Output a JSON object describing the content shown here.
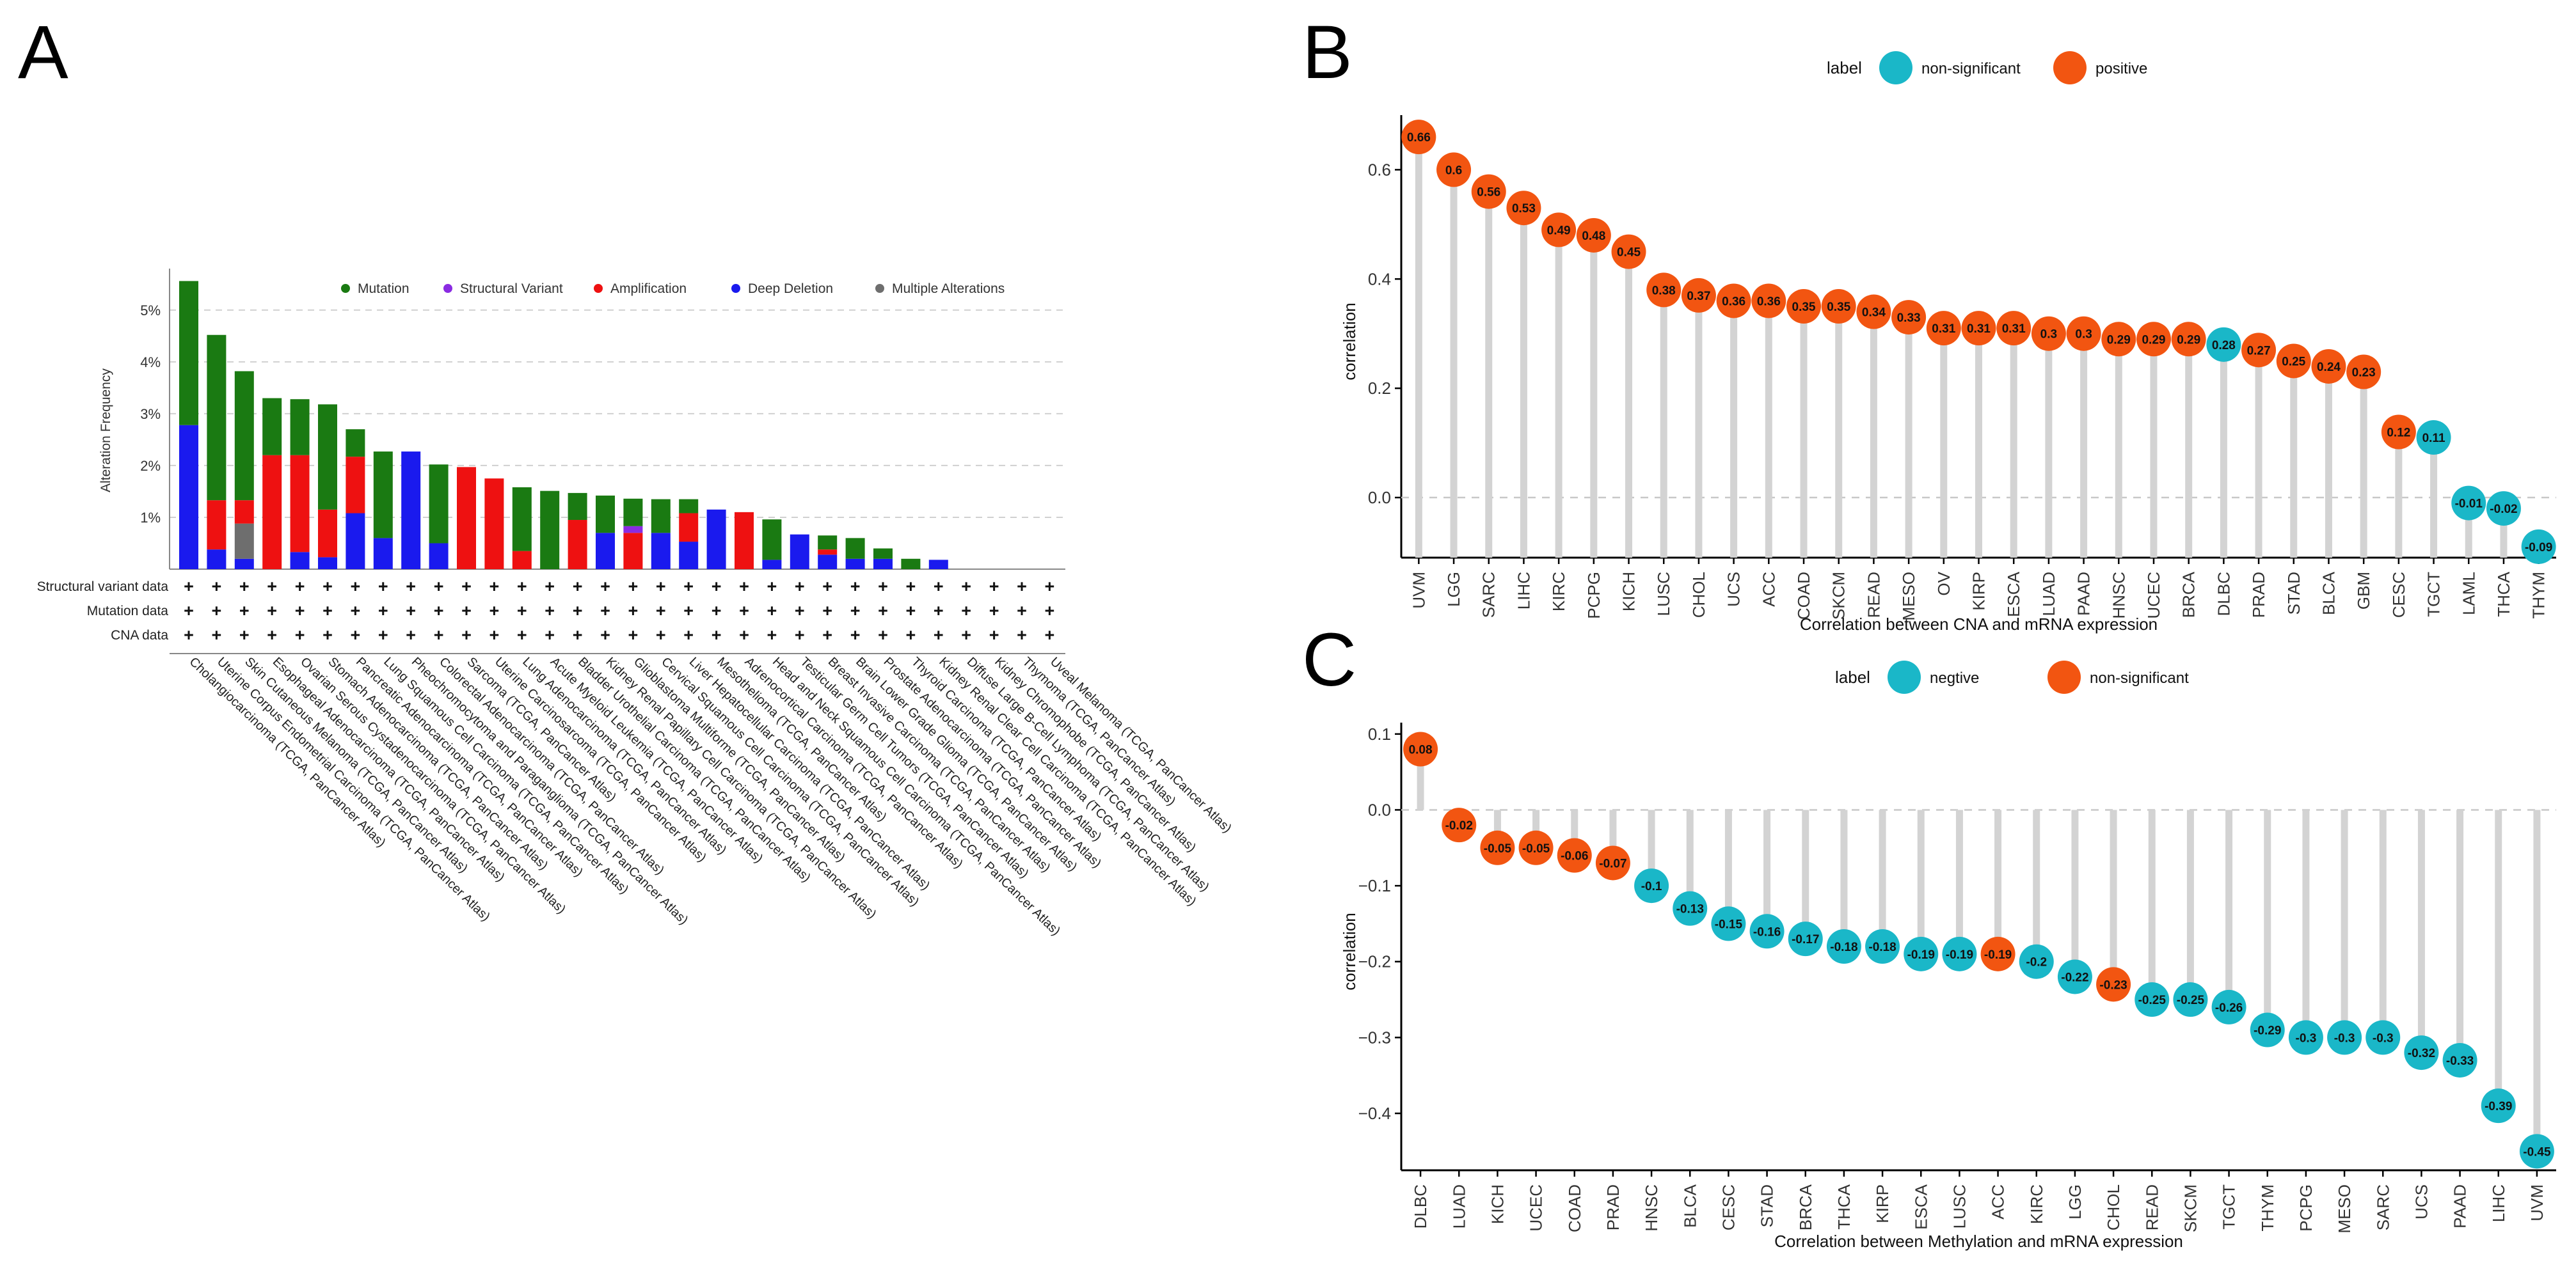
{
  "panel_labels": {
    "a": "A",
    "b": "B",
    "c": "C"
  },
  "colors": {
    "mutation": "#1a7a12",
    "structural": "#8a2be2",
    "amplification": "#ee1111",
    "deep_deletion": "#1a1aee",
    "multiple": "#6e6e6e",
    "teal": "#1ab7c8",
    "orange": "#f25511",
    "stick": "#d3d3d3"
  },
  "chart_data": [
    {
      "id": "A",
      "type": "bar",
      "stacked": true,
      "ylabel": "Alteration Frequency",
      "ylim": [
        0,
        5.8
      ],
      "yticks": [
        1,
        2,
        3,
        4,
        5
      ],
      "ytick_labels": [
        "1%",
        "2%",
        "3%",
        "4%",
        "5%"
      ],
      "legend_position": "top",
      "series": [
        {
          "key": "mutation",
          "name": "Mutation"
        },
        {
          "key": "structural",
          "name": "Structural Variant"
        },
        {
          "key": "amplification",
          "name": "Amplification"
        },
        {
          "key": "deep_deletion",
          "name": "Deep Deletion"
        },
        {
          "key": "multiple",
          "name": "Multiple Alterations"
        }
      ],
      "track_rows": [
        "Structural variant data",
        "Mutation data",
        "CNA data"
      ],
      "track_mark": "+",
      "categories": [
        "Cholangiocarcinoma (TCGA, PanCancer Atlas)",
        "Uterine Corpus Endometrial Carcinoma (TCGA, PanCancer Atlas)",
        "Skin Cutaneous Melanoma (TCGA, PanCancer Atlas)",
        "Esophageal Adenocarcinoma (TCGA, PanCancer Atlas)",
        "Ovarian Serous Cystadenocarcinoma (TCGA, PanCancer Atlas)",
        "Stomach Adenocarcinoma (TCGA, PanCancer Atlas)",
        "Pancreatic Adenocarcinoma (TCGA, PanCancer Atlas)",
        "Lung Squamous Cell Carcinoma (TCGA, PanCancer Atlas)",
        "Pheochromocytoma and Paraganglioma (TCGA, PanCancer Atlas)",
        "Colorectal Adenocarcinoma (TCGA, PanCancer Atlas)",
        "Sarcoma (TCGA, PanCancer Atlas)",
        "Uterine Carcinosarcoma (TCGA, PanCancer Atlas)",
        "Lung Adenocarcinoma (TCGA, PanCancer Atlas)",
        "Acute Myeloid Leukemia (TCGA, PanCancer Atlas)",
        "Bladder Urothelial Carcinoma (TCGA, PanCancer Atlas)",
        "Kidney Renal Papillary Cell Carcinoma (TCGA, PanCancer Atlas)",
        "Glioblastoma Multiforme (TCGA, PanCancer Atlas)",
        "Cervical Squamous Cell Carcinoma (TCGA, PanCancer Atlas)",
        "Liver Hepatocellular Carcinoma (TCGA, PanCancer Atlas)",
        "Mesothelioma (TCGA, PanCancer Atlas)",
        "Adrenocortical Carcinoma (TCGA, PanCancer Atlas)",
        "Head and Neck Squamous Cell Carcinoma (TCGA, PanCancer Atlas)",
        "Testicular Germ Cell Tumors (TCGA, PanCancer Atlas)",
        "Breast Invasive Carcinoma (TCGA, PanCancer Atlas)",
        "Brain Lower Grade Glioma (TCGA, PanCancer Atlas)",
        "Prostate Adenocarcinoma (TCGA, PanCancer Atlas)",
        "Thyroid Carcinoma (TCGA, PanCancer Atlas)",
        "Kidney Renal Clear Cell Carcinoma (TCGA, PanCancer Atlas)",
        "Diffuse Large B-Cell Lymphoma (TCGA, PanCancer Atlas)",
        "Kidney Chromophobe (TCGA, PanCancer Atlas)",
        "Thymoma (TCGA, PanCancer Atlas)",
        "Uveal Melanoma (TCGA, PanCancer Atlas)"
      ],
      "stacks": [
        {
          "deep_deletion": 2.78,
          "mutation": 2.78
        },
        {
          "deep_deletion": 0.38,
          "amplification": 0.95,
          "mutation": 3.19
        },
        {
          "multiple": 0.68,
          "deep_deletion": 0.2,
          "amplification": 0.45,
          "mutation": 2.49
        },
        {
          "amplification": 2.2,
          "mutation": 1.1
        },
        {
          "deep_deletion": 0.33,
          "amplification": 1.87,
          "mutation": 1.08
        },
        {
          "deep_deletion": 0.23,
          "amplification": 0.92,
          "mutation": 2.03
        },
        {
          "deep_deletion": 1.08,
          "amplification": 1.09,
          "mutation": 0.53
        },
        {
          "deep_deletion": 0.6,
          "mutation": 1.67
        },
        {
          "deep_deletion": 2.27
        },
        {
          "deep_deletion": 0.5,
          "mutation": 1.52
        },
        {
          "amplification": 1.97
        },
        {
          "amplification": 1.75
        },
        {
          "amplification": 0.35,
          "mutation": 1.23
        },
        {
          "mutation": 1.51
        },
        {
          "amplification": 0.95,
          "mutation": 0.52
        },
        {
          "deep_deletion": 0.7,
          "mutation": 0.72
        },
        {
          "amplification": 0.7,
          "structural": 0.13,
          "mutation": 0.53
        },
        {
          "deep_deletion": 0.7,
          "mutation": 0.65
        },
        {
          "deep_deletion": 0.53,
          "amplification": 0.55,
          "mutation": 0.27
        },
        {
          "deep_deletion": 1.15
        },
        {
          "amplification": 1.1
        },
        {
          "deep_deletion": 0.18,
          "mutation": 0.78
        },
        {
          "deep_deletion": 0.67
        },
        {
          "deep_deletion": 0.28,
          "amplification": 0.1,
          "mutation": 0.27
        },
        {
          "deep_deletion": 0.2,
          "mutation": 0.4
        },
        {
          "deep_deletion": 0.2,
          "mutation": 0.2
        },
        {
          "mutation": 0.2
        },
        {
          "deep_deletion": 0.18
        },
        {},
        {},
        {},
        {}
      ]
    },
    {
      "id": "B",
      "type": "lollipop",
      "xlabel": "Correlation between CNA and mRNA expression",
      "ylabel": "correlation",
      "ylim": [
        -0.11,
        0.7
      ],
      "yticks": [
        0.0,
        0.2,
        0.4,
        0.6
      ],
      "ytick_labels": [
        "0.0",
        "0.2",
        "0.4",
        "0.6"
      ],
      "legend_title": "label",
      "legend": [
        {
          "key": "teal",
          "name": "non-significant"
        },
        {
          "key": "orange",
          "name": "positive"
        }
      ],
      "points": [
        {
          "x": "UVM",
          "y": 0.66,
          "label": "0.66",
          "group": "orange"
        },
        {
          "x": "LGG",
          "y": 0.6,
          "label": "0.6",
          "group": "orange"
        },
        {
          "x": "SARC",
          "y": 0.56,
          "label": "0.56",
          "group": "orange"
        },
        {
          "x": "LIHC",
          "y": 0.53,
          "label": "0.53",
          "group": "orange"
        },
        {
          "x": "KIRC",
          "y": 0.49,
          "label": "0.49",
          "group": "orange"
        },
        {
          "x": "PCPG",
          "y": 0.48,
          "label": "0.48",
          "group": "orange"
        },
        {
          "x": "KICH",
          "y": 0.45,
          "label": "0.45",
          "group": "orange"
        },
        {
          "x": "LUSC",
          "y": 0.38,
          "label": "0.38",
          "group": "orange"
        },
        {
          "x": "CHOL",
          "y": 0.37,
          "label": "0.37",
          "group": "orange"
        },
        {
          "x": "UCS",
          "y": 0.36,
          "label": "0.36",
          "group": "orange"
        },
        {
          "x": "ACC",
          "y": 0.36,
          "label": "0.36",
          "group": "orange"
        },
        {
          "x": "COAD",
          "y": 0.35,
          "label": "0.35",
          "group": "orange"
        },
        {
          "x": "SKCM",
          "y": 0.35,
          "label": "0.35",
          "group": "orange"
        },
        {
          "x": "READ",
          "y": 0.34,
          "label": "0.34",
          "group": "orange"
        },
        {
          "x": "MESO",
          "y": 0.33,
          "label": "0.33",
          "group": "orange"
        },
        {
          "x": "OV",
          "y": 0.31,
          "label": "0.31",
          "group": "orange"
        },
        {
          "x": "KIRP",
          "y": 0.31,
          "label": "0.31",
          "group": "orange"
        },
        {
          "x": "ESCA",
          "y": 0.31,
          "label": "0.31",
          "group": "orange"
        },
        {
          "x": "LUAD",
          "y": 0.3,
          "label": "0.3",
          "group": "orange"
        },
        {
          "x": "PAAD",
          "y": 0.3,
          "label": "0.3",
          "group": "orange"
        },
        {
          "x": "HNSC",
          "y": 0.29,
          "label": "0.29",
          "group": "orange"
        },
        {
          "x": "UCEC",
          "y": 0.29,
          "label": "0.29",
          "group": "orange"
        },
        {
          "x": "BRCA",
          "y": 0.29,
          "label": "0.29",
          "group": "orange"
        },
        {
          "x": "DLBC",
          "y": 0.28,
          "label": "0.28",
          "group": "teal"
        },
        {
          "x": "PRAD",
          "y": 0.27,
          "label": "0.27",
          "group": "orange"
        },
        {
          "x": "STAD",
          "y": 0.25,
          "label": "0.25",
          "group": "orange"
        },
        {
          "x": "BLCA",
          "y": 0.24,
          "label": "0.24",
          "group": "orange"
        },
        {
          "x": "GBM",
          "y": 0.23,
          "label": "0.23",
          "group": "orange"
        },
        {
          "x": "CESC",
          "y": 0.12,
          "label": "0.12",
          "group": "orange"
        },
        {
          "x": "TGCT",
          "y": 0.11,
          "label": "0.11",
          "group": "teal"
        },
        {
          "x": "LAML",
          "y": -0.01,
          "label": "-0.01",
          "group": "teal"
        },
        {
          "x": "THCA",
          "y": -0.02,
          "label": "-0.02",
          "group": "teal"
        },
        {
          "x": "THYM",
          "y": -0.09,
          "label": "-0.09",
          "group": "teal"
        }
      ]
    },
    {
      "id": "C",
      "type": "lollipop",
      "xlabel": "Correlation between Methylation and mRNA expression",
      "ylabel": "correlation",
      "ylim": [
        -0.475,
        0.115
      ],
      "yticks": [
        0.1,
        0.0,
        -0.1,
        -0.2,
        -0.3,
        -0.4
      ],
      "ytick_labels": [
        "0.1",
        "0.0",
        "−0.1",
        "−0.2",
        "−0.3",
        "−0.4"
      ],
      "legend_title": "label",
      "legend": [
        {
          "key": "teal",
          "name": "negtive"
        },
        {
          "key": "orange",
          "name": "non-significant"
        }
      ],
      "points": [
        {
          "x": "DLBC",
          "y": 0.08,
          "label": "0.08",
          "group": "orange"
        },
        {
          "x": "LUAD",
          "y": -0.02,
          "label": "-0.02",
          "group": "orange"
        },
        {
          "x": "KICH",
          "y": -0.05,
          "label": "-0.05",
          "group": "orange"
        },
        {
          "x": "UCEC",
          "y": -0.05,
          "label": "-0.05",
          "group": "orange"
        },
        {
          "x": "COAD",
          "y": -0.06,
          "label": "-0.06",
          "group": "orange"
        },
        {
          "x": "PRAD",
          "y": -0.07,
          "label": "-0.07",
          "group": "orange"
        },
        {
          "x": "HNSC",
          "y": -0.1,
          "label": "-0.1",
          "group": "teal"
        },
        {
          "x": "BLCA",
          "y": -0.13,
          "label": "-0.13",
          "group": "teal"
        },
        {
          "x": "CESC",
          "y": -0.15,
          "label": "-0.15",
          "group": "teal"
        },
        {
          "x": "STAD",
          "y": -0.16,
          "label": "-0.16",
          "group": "teal"
        },
        {
          "x": "BRCA",
          "y": -0.17,
          "label": "-0.17",
          "group": "teal"
        },
        {
          "x": "THCA",
          "y": -0.18,
          "label": "-0.18",
          "group": "teal"
        },
        {
          "x": "KIRP",
          "y": -0.18,
          "label": "-0.18",
          "group": "teal"
        },
        {
          "x": "ESCA",
          "y": -0.19,
          "label": "-0.19",
          "group": "teal"
        },
        {
          "x": "LUSC",
          "y": -0.19,
          "label": "-0.19",
          "group": "teal"
        },
        {
          "x": "ACC",
          "y": -0.19,
          "label": "-0.19",
          "group": "orange"
        },
        {
          "x": "KIRC",
          "y": -0.2,
          "label": "-0.2",
          "group": "teal"
        },
        {
          "x": "LGG",
          "y": -0.22,
          "label": "-0.22",
          "group": "teal"
        },
        {
          "x": "CHOL",
          "y": -0.23,
          "label": "-0.23",
          "group": "orange"
        },
        {
          "x": "READ",
          "y": -0.25,
          "label": "-0.25",
          "group": "teal"
        },
        {
          "x": "SKCM",
          "y": -0.25,
          "label": "-0.25",
          "group": "teal"
        },
        {
          "x": "TGCT",
          "y": -0.26,
          "label": "-0.26",
          "group": "teal"
        },
        {
          "x": "THYM",
          "y": -0.29,
          "label": "-0.29",
          "group": "teal"
        },
        {
          "x": "PCPG",
          "y": -0.3,
          "label": "-0.3",
          "group": "teal"
        },
        {
          "x": "MESO",
          "y": -0.3,
          "label": "-0.3",
          "group": "teal"
        },
        {
          "x": "SARC",
          "y": -0.3,
          "label": "-0.3",
          "group": "teal"
        },
        {
          "x": "UCS",
          "y": -0.32,
          "label": "-0.32",
          "group": "teal"
        },
        {
          "x": "PAAD",
          "y": -0.33,
          "label": "-0.33",
          "group": "teal"
        },
        {
          "x": "LIHC",
          "y": -0.39,
          "label": "-0.39",
          "group": "teal"
        },
        {
          "x": "UVM",
          "y": -0.45,
          "label": "-0.45",
          "group": "teal"
        }
      ]
    }
  ]
}
